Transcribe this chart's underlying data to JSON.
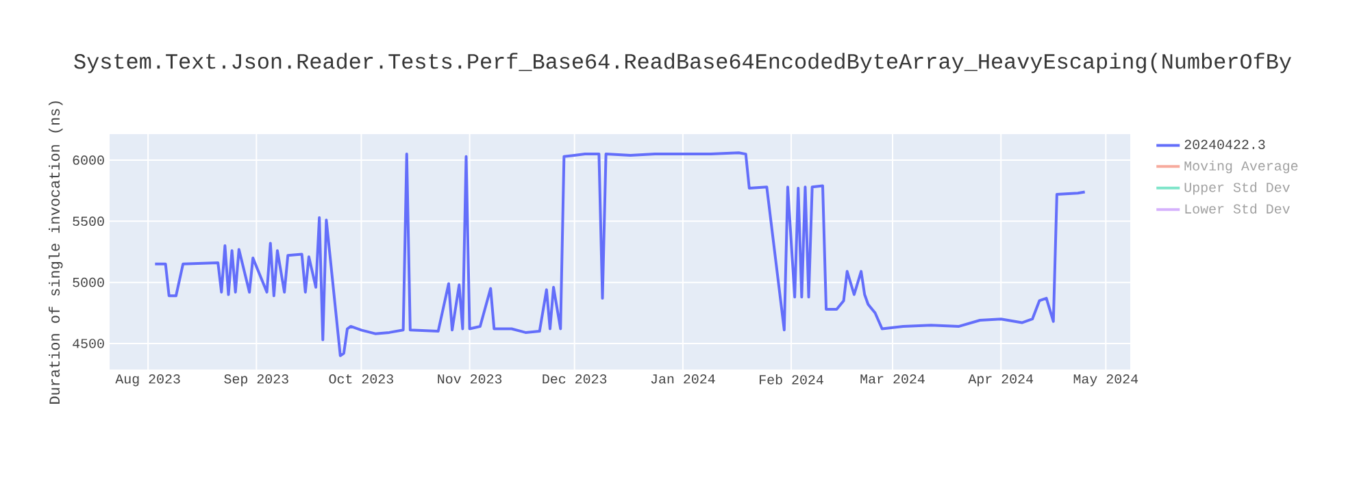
{
  "chart_data": {
    "type": "line",
    "title": "System.Text.Json.Reader.Tests.Perf_Base64.ReadBase64EncodedByteArray_HeavyEscaping(NumberOfBy",
    "ylabel": "Duration of single invocation (ns)",
    "x": [
      "2023-08-03",
      "2023-08-06",
      "2023-08-07",
      "2023-08-09",
      "2023-08-11",
      "2023-08-21",
      "2023-08-22",
      "2023-08-23",
      "2023-08-24",
      "2023-08-25",
      "2023-08-26",
      "2023-08-27",
      "2023-08-30",
      "2023-08-31",
      "2023-09-04",
      "2023-09-05",
      "2023-09-06",
      "2023-09-07",
      "2023-09-09",
      "2023-09-10",
      "2023-09-14",
      "2023-09-15",
      "2023-09-16",
      "2023-09-18",
      "2023-09-19",
      "2023-09-20",
      "2023-09-21",
      "2023-09-25",
      "2023-09-26",
      "2023-09-27",
      "2023-09-28",
      "2023-10-01",
      "2023-10-05",
      "2023-10-09",
      "2023-10-13",
      "2023-10-14",
      "2023-10-15",
      "2023-10-23",
      "2023-10-26",
      "2023-10-27",
      "2023-10-29",
      "2023-10-30",
      "2023-10-31",
      "2023-11-01",
      "2023-11-04",
      "2023-11-07",
      "2023-11-08",
      "2023-11-13",
      "2023-11-17",
      "2023-11-21",
      "2023-11-23",
      "2023-11-24",
      "2023-11-25",
      "2023-11-27",
      "2023-11-28",
      "2023-12-01",
      "2023-12-04",
      "2023-12-08",
      "2023-12-09",
      "2023-12-10",
      "2023-12-17",
      "2023-12-24",
      "2024-01-01",
      "2024-01-09",
      "2024-01-17",
      "2024-01-19",
      "2024-01-20",
      "2024-01-25",
      "2024-01-30",
      "2024-01-31",
      "2024-02-02",
      "2024-02-03",
      "2024-02-04",
      "2024-02-05",
      "2024-02-06",
      "2024-02-07",
      "2024-02-10",
      "2024-02-11",
      "2024-02-14",
      "2024-02-16",
      "2024-02-17",
      "2024-02-19",
      "2024-02-21",
      "2024-02-22",
      "2024-02-23",
      "2024-02-25",
      "2024-02-27",
      "2024-03-04",
      "2024-03-12",
      "2024-03-20",
      "2024-03-26",
      "2024-04-01",
      "2024-04-07",
      "2024-04-10",
      "2024-04-12",
      "2024-04-14",
      "2024-04-16",
      "2024-04-17",
      "2024-04-23",
      "2024-04-25"
    ],
    "series": [
      {
        "name": "20240422.3",
        "color": "#636efa",
        "values": [
          5150,
          5150,
          4890,
          4890,
          5150,
          5160,
          4920,
          5300,
          4900,
          5260,
          4920,
          5270,
          4920,
          5200,
          4920,
          5320,
          4890,
          5260,
          4920,
          5220,
          5230,
          4920,
          5210,
          4960,
          5530,
          4530,
          5510,
          4400,
          4420,
          4620,
          4640,
          4610,
          4580,
          4590,
          4610,
          6050,
          4610,
          4600,
          4990,
          4610,
          4980,
          4620,
          6030,
          4620,
          4640,
          4950,
          4620,
          4620,
          4590,
          4600,
          4940,
          4620,
          4960,
          4620,
          6030,
          6040,
          6050,
          6050,
          4870,
          6050,
          6040,
          6050,
          6050,
          6050,
          6060,
          6050,
          5770,
          5780,
          4610,
          5780,
          4880,
          5770,
          4880,
          5780,
          4880,
          5780,
          5790,
          4780,
          4780,
          4850,
          5090,
          4900,
          5090,
          4900,
          4820,
          4750,
          4620,
          4640,
          4650,
          4640,
          4690,
          4700,
          4670,
          4700,
          4850,
          4870,
          4680,
          5720,
          5730,
          5740
        ]
      },
      {
        "name": "Moving Average",
        "color": "#f7aa9d",
        "values": [
          null,
          null,
          null,
          null,
          null,
          null,
          null,
          null,
          null,
          null,
          null,
          null,
          null,
          null,
          null,
          null,
          null,
          null,
          null,
          null,
          null,
          null,
          null,
          null,
          null,
          null,
          null,
          null,
          null,
          null,
          null,
          null,
          null,
          null,
          null,
          null,
          null,
          null,
          null,
          null,
          null,
          null,
          null,
          null,
          null,
          null,
          null,
          null,
          null,
          null,
          null,
          null,
          null,
          null,
          null,
          null,
          null,
          null,
          null,
          null,
          null,
          null,
          null,
          null,
          null,
          null,
          null,
          null,
          null,
          null,
          null,
          null,
          null,
          null,
          null,
          null,
          null,
          null,
          null,
          null,
          null,
          null,
          null,
          null,
          null,
          null,
          null,
          null,
          null,
          null,
          null,
          null,
          null,
          null,
          null,
          null,
          null,
          null,
          null,
          null
        ]
      },
      {
        "name": "Upper Std Dev",
        "color": "#7fe5ca",
        "values": [
          null,
          null,
          null,
          null,
          null,
          null,
          null,
          null,
          null,
          null,
          null,
          null,
          null,
          null,
          null,
          null,
          null,
          null,
          null,
          null,
          null,
          null,
          null,
          null,
          null,
          null,
          null,
          null,
          null,
          null,
          null,
          null,
          null,
          null,
          null,
          null,
          null,
          null,
          null,
          null,
          null,
          null,
          null,
          null,
          null,
          null,
          null,
          null,
          null,
          null,
          null,
          null,
          null,
          null,
          null,
          null,
          null,
          null,
          null,
          null,
          null,
          null,
          null,
          null,
          null,
          null,
          null,
          null,
          null,
          null,
          null,
          null,
          null,
          null,
          null,
          null,
          null,
          null,
          null,
          null,
          null,
          null,
          null,
          null,
          null,
          null,
          null,
          null,
          null,
          null,
          null,
          null,
          null,
          null,
          null,
          null,
          null,
          null,
          null,
          null
        ]
      },
      {
        "name": "Lower Std Dev",
        "color": "#d5b1fc",
        "values": [
          null,
          null,
          null,
          null,
          null,
          null,
          null,
          null,
          null,
          null,
          null,
          null,
          null,
          null,
          null,
          null,
          null,
          null,
          null,
          null,
          null,
          null,
          null,
          null,
          null,
          null,
          null,
          null,
          null,
          null,
          null,
          null,
          null,
          null,
          null,
          null,
          null,
          null,
          null,
          null,
          null,
          null,
          null,
          null,
          null,
          null,
          null,
          null,
          null,
          null,
          null,
          null,
          null,
          null,
          null,
          null,
          null,
          null,
          null,
          null,
          null,
          null,
          null,
          null,
          null,
          null,
          null,
          null,
          null,
          null,
          null,
          null,
          null,
          null,
          null,
          null,
          null,
          null,
          null,
          null,
          null,
          null,
          null,
          null,
          null,
          null,
          null,
          null,
          null,
          null,
          null,
          null,
          null,
          null,
          null,
          null,
          null,
          null,
          null,
          null
        ]
      }
    ],
    "xlim": [
      "2023-07-21",
      "2024-05-08"
    ],
    "xticks": [
      {
        "value": "2023-08-01",
        "label": "Aug 2023"
      },
      {
        "value": "2023-09-01",
        "label": "Sep 2023"
      },
      {
        "value": "2023-10-01",
        "label": "Oct 2023"
      },
      {
        "value": "2023-11-01",
        "label": "Nov 2023"
      },
      {
        "value": "2023-12-01",
        "label": "Dec 2023"
      },
      {
        "value": "2024-01-01",
        "label": "Jan 2024"
      },
      {
        "value": "2024-02-01",
        "label": "Feb 2024"
      },
      {
        "value": "2024-03-01",
        "label": "Mar 2024"
      },
      {
        "value": "2024-04-01",
        "label": "Apr 2024"
      },
      {
        "value": "2024-05-01",
        "label": "May 2024"
      }
    ],
    "ylim": [
      4287,
      6213
    ],
    "yticks": [
      4500,
      5000,
      5500,
      6000
    ],
    "grid": true,
    "legend": "top right"
  }
}
